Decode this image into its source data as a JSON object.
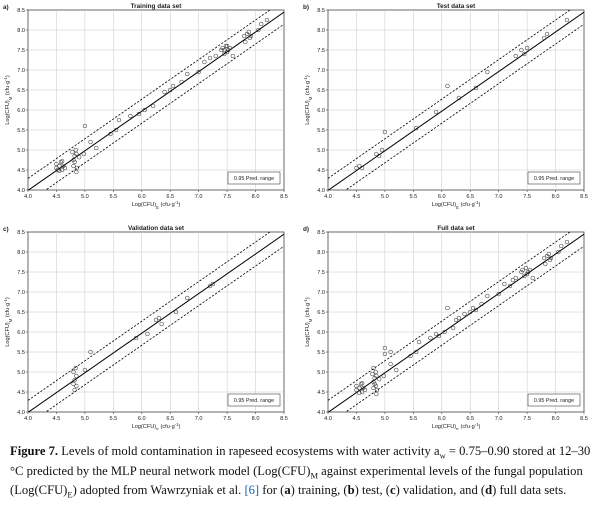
{
  "chart_data": [
    {
      "type": "scatter",
      "panel_letter": "a)",
      "title": "Training data set",
      "xlabel": "Log(CFU)",
      "xlabel_sub": "E",
      "xlabel_unit": "(cfu·g",
      "ylabel": "Log(CFU)",
      "ylabel_sub": "M",
      "ylabel_unit": "(cfu·g",
      "unit_exp": "-1",
      "unit_close": ")",
      "xlim": [
        4.0,
        8.5
      ],
      "ylim": [
        4.0,
        8.5
      ],
      "xticks": [
        "4.0",
        "4.5",
        "5.0",
        "5.5",
        "6.0",
        "6.5",
        "7.0",
        "7.5",
        "8.0",
        "8.5"
      ],
      "yticks": [
        "4.0",
        "4.5",
        "5.0",
        "5.5",
        "6.0",
        "6.5",
        "7.0",
        "7.5",
        "8.0",
        "8.5"
      ],
      "grid": true,
      "legend": "0.95 Pred. range",
      "legend_position": "bottom-right",
      "fit": {
        "slope": 0.99,
        "intercept": 0.03
      },
      "pred_band": 0.3,
      "points": [
        [
          4.5,
          4.55
        ],
        [
          4.55,
          4.6
        ],
        [
          4.6,
          4.5
        ],
        [
          4.5,
          4.65
        ],
        [
          4.58,
          4.7
        ],
        [
          4.62,
          4.6
        ],
        [
          4.55,
          4.48
        ],
        [
          4.6,
          4.72
        ],
        [
          4.52,
          4.5
        ],
        [
          4.65,
          4.55
        ],
        [
          4.8,
          4.75
        ],
        [
          4.82,
          4.85
        ],
        [
          4.85,
          4.9
        ],
        [
          4.78,
          4.95
        ],
        [
          4.84,
          5.0
        ],
        [
          4.8,
          4.6
        ],
        [
          4.82,
          4.7
        ],
        [
          4.9,
          4.82
        ],
        [
          4.86,
          4.55
        ],
        [
          4.85,
          4.45
        ],
        [
          5.0,
          5.6
        ],
        [
          4.98,
          4.9
        ],
        [
          5.1,
          5.2
        ],
        [
          5.2,
          5.05
        ],
        [
          5.45,
          5.4
        ],
        [
          5.55,
          5.5
        ],
        [
          5.6,
          5.75
        ],
        [
          5.8,
          5.85
        ],
        [
          5.95,
          5.9
        ],
        [
          6.05,
          6.0
        ],
        [
          6.2,
          6.1
        ],
        [
          6.4,
          6.45
        ],
        [
          6.5,
          6.5
        ],
        [
          6.55,
          6.6
        ],
        [
          6.7,
          6.7
        ],
        [
          6.8,
          6.9
        ],
        [
          7.0,
          6.95
        ],
        [
          7.1,
          7.2
        ],
        [
          7.2,
          7.3
        ],
        [
          7.3,
          7.35
        ],
        [
          7.4,
          7.5
        ],
        [
          7.42,
          7.55
        ],
        [
          7.45,
          7.4
        ],
        [
          7.48,
          7.6
        ],
        [
          7.5,
          7.45
        ],
        [
          7.52,
          7.5
        ],
        [
          7.55,
          7.55
        ],
        [
          7.6,
          7.35
        ],
        [
          7.45,
          7.5
        ],
        [
          7.5,
          7.6
        ],
        [
          7.8,
          7.85
        ],
        [
          7.85,
          7.9
        ],
        [
          7.9,
          7.8
        ],
        [
          7.82,
          7.7
        ],
        [
          7.88,
          7.95
        ],
        [
          7.92,
          7.85
        ],
        [
          8.05,
          8.0
        ],
        [
          8.1,
          8.15
        ],
        [
          8.2,
          8.25
        ]
      ]
    },
    {
      "type": "scatter",
      "panel_letter": "b)",
      "title": "Test data set",
      "xlabel": "Log(CFU)",
      "xlabel_sub": "E",
      "xlabel_unit": "(cfu·g",
      "ylabel": "Log(CFU)",
      "ylabel_sub": "M",
      "ylabel_unit": "(cfu·g",
      "unit_exp": "-1",
      "unit_close": ")",
      "xlim": [
        4.0,
        8.5
      ],
      "ylim": [
        4.0,
        8.5
      ],
      "xticks": [
        "4.0",
        "4.5",
        "5.0",
        "5.5",
        "6.0",
        "6.5",
        "7.0",
        "7.5",
        "8.0",
        "8.5"
      ],
      "yticks": [
        "4.0",
        "4.5",
        "5.0",
        "5.5",
        "6.0",
        "6.5",
        "7.0",
        "7.5",
        "8.0",
        "8.5"
      ],
      "grid": true,
      "legend": "0.95 Pred. range",
      "legend_position": "bottom-right",
      "fit": {
        "slope": 0.99,
        "intercept": 0.03
      },
      "pred_band": 0.3,
      "points": [
        [
          4.5,
          4.55
        ],
        [
          4.55,
          4.6
        ],
        [
          4.6,
          4.55
        ],
        [
          4.85,
          4.9
        ],
        [
          4.9,
          4.85
        ],
        [
          4.95,
          5.0
        ],
        [
          5.0,
          5.45
        ],
        [
          5.55,
          5.55
        ],
        [
          5.9,
          5.95
        ],
        [
          6.1,
          6.6
        ],
        [
          6.3,
          6.3
        ],
        [
          6.6,
          6.55
        ],
        [
          6.8,
          6.95
        ],
        [
          7.3,
          7.35
        ],
        [
          7.4,
          7.5
        ],
        [
          7.45,
          7.4
        ],
        [
          7.5,
          7.55
        ],
        [
          7.8,
          7.8
        ],
        [
          7.85,
          7.9
        ],
        [
          8.2,
          8.25
        ]
      ]
    },
    {
      "type": "scatter",
      "panel_letter": "c)",
      "title": "Validation data set",
      "xlabel": "Log(CFU)",
      "xlabel_sub": "E",
      "xlabel_unit": "(cfu·g",
      "ylabel": "Log(CFU)",
      "ylabel_sub": "M",
      "ylabel_unit": "(cfu·g",
      "unit_exp": "-1",
      "unit_close": ")",
      "xlim": [
        4.0,
        8.5
      ],
      "ylim": [
        4.0,
        8.5
      ],
      "xticks": [
        "4.0",
        "4.5",
        "5.0",
        "5.5",
        "6.0",
        "6.5",
        "7.0",
        "7.5",
        "8.0",
        "8.5"
      ],
      "yticks": [
        "4.0",
        "4.5",
        "5.0",
        "5.5",
        "6.0",
        "6.5",
        "7.0",
        "7.5",
        "8.0",
        "8.5"
      ],
      "grid": true,
      "legend": "0.95 Pred. range",
      "legend_position": "bottom-right",
      "fit": {
        "slope": 0.99,
        "intercept": 0.03
      },
      "pred_band": 0.3,
      "points": [
        [
          4.8,
          4.7
        ],
        [
          4.82,
          4.8
        ],
        [
          4.85,
          4.9
        ],
        [
          4.8,
          5.0
        ],
        [
          4.84,
          5.1
        ],
        [
          4.82,
          4.55
        ],
        [
          4.85,
          4.65
        ],
        [
          5.0,
          5.05
        ],
        [
          5.1,
          5.5
        ],
        [
          5.9,
          5.85
        ],
        [
          6.1,
          5.95
        ],
        [
          6.25,
          6.3
        ],
        [
          6.3,
          6.35
        ],
        [
          6.35,
          6.2
        ],
        [
          6.6,
          6.5
        ],
        [
          6.8,
          6.85
        ],
        [
          7.2,
          7.15
        ],
        [
          7.25,
          7.2
        ]
      ]
    },
    {
      "type": "scatter",
      "panel_letter": "d)",
      "title": "Full data set",
      "xlabel": "Log(CFU)",
      "xlabel_sub": "E",
      "xlabel_unit": "(cfu·g",
      "ylabel": "Log(CFU)",
      "ylabel_sub": "M",
      "ylabel_unit": "(cfu·g",
      "unit_exp": "-1",
      "unit_close": ")",
      "xlim": [
        4.0,
        8.5
      ],
      "ylim": [
        4.0,
        8.5
      ],
      "xticks": [
        "4.0",
        "4.5",
        "5.0",
        "5.5",
        "6.0",
        "6.5",
        "7.0",
        "7.5",
        "8.0",
        "8.5"
      ],
      "yticks": [
        "4.0",
        "4.5",
        "5.0",
        "5.5",
        "6.0",
        "6.5",
        "7.0",
        "7.5",
        "8.0",
        "8.5"
      ],
      "grid": true,
      "legend": "0.95 Pred. range",
      "legend_position": "bottom-right",
      "fit": {
        "slope": 0.99,
        "intercept": 0.03
      },
      "pred_band": 0.3,
      "points": [
        [
          4.5,
          4.55
        ],
        [
          4.55,
          4.6
        ],
        [
          4.6,
          4.5
        ],
        [
          4.5,
          4.65
        ],
        [
          4.58,
          4.7
        ],
        [
          4.62,
          4.6
        ],
        [
          4.55,
          4.48
        ],
        [
          4.6,
          4.72
        ],
        [
          4.65,
          4.55
        ],
        [
          4.8,
          4.75
        ],
        [
          4.82,
          4.85
        ],
        [
          4.85,
          4.9
        ],
        [
          4.78,
          4.95
        ],
        [
          4.84,
          5.0
        ],
        [
          4.8,
          4.6
        ],
        [
          4.82,
          4.7
        ],
        [
          4.9,
          4.82
        ],
        [
          4.86,
          4.55
        ],
        [
          4.85,
          4.45
        ],
        [
          4.8,
          5.1
        ],
        [
          4.84,
          4.65
        ],
        [
          5.0,
          5.6
        ],
        [
          5.0,
          5.45
        ],
        [
          4.98,
          4.9
        ],
        [
          5.1,
          5.2
        ],
        [
          5.1,
          5.5
        ],
        [
          5.2,
          5.05
        ],
        [
          5.45,
          5.4
        ],
        [
          5.55,
          5.5
        ],
        [
          5.6,
          5.75
        ],
        [
          5.8,
          5.85
        ],
        [
          5.9,
          5.95
        ],
        [
          5.95,
          5.9
        ],
        [
          6.05,
          6.0
        ],
        [
          6.1,
          6.6
        ],
        [
          6.2,
          6.1
        ],
        [
          6.25,
          6.3
        ],
        [
          6.3,
          6.35
        ],
        [
          6.4,
          6.45
        ],
        [
          6.5,
          6.5
        ],
        [
          6.55,
          6.6
        ],
        [
          6.6,
          6.55
        ],
        [
          6.7,
          6.7
        ],
        [
          6.8,
          6.9
        ],
        [
          7.0,
          6.95
        ],
        [
          7.1,
          7.2
        ],
        [
          7.2,
          7.15
        ],
        [
          7.25,
          7.3
        ],
        [
          7.3,
          7.35
        ],
        [
          7.4,
          7.5
        ],
        [
          7.42,
          7.55
        ],
        [
          7.45,
          7.4
        ],
        [
          7.48,
          7.6
        ],
        [
          7.5,
          7.45
        ],
        [
          7.52,
          7.5
        ],
        [
          7.55,
          7.55
        ],
        [
          7.6,
          7.35
        ],
        [
          7.8,
          7.85
        ],
        [
          7.85,
          7.9
        ],
        [
          7.9,
          7.8
        ],
        [
          7.82,
          7.7
        ],
        [
          7.88,
          7.95
        ],
        [
          7.92,
          7.85
        ],
        [
          8.05,
          8.0
        ],
        [
          8.1,
          8.15
        ],
        [
          8.2,
          8.25
        ]
      ]
    }
  ],
  "caption": {
    "label": "Figure 7.",
    "text_1": " Levels of mold contamination in rapeseed ecosystems with water activity a",
    "sub_w": "w",
    "text_2": " = 0.75–0.90 stored at 12–30 °C predicted by the MLP neural network model (Log(CFU)",
    "sub_m": "M",
    "text_3": " against experimental levels of the fungal population (Log(CFU)",
    "sub_e": "E",
    "text_4": ") adopted from Wawrzyniak et al. ",
    "ref": "[6]",
    "text_5": " for (",
    "a": "a",
    "text_6": ") training, (",
    "b": "b",
    "text_7": ") test, (",
    "c": "c",
    "text_8": ") validation, and (",
    "d": "d",
    "text_9": ") full data sets."
  }
}
